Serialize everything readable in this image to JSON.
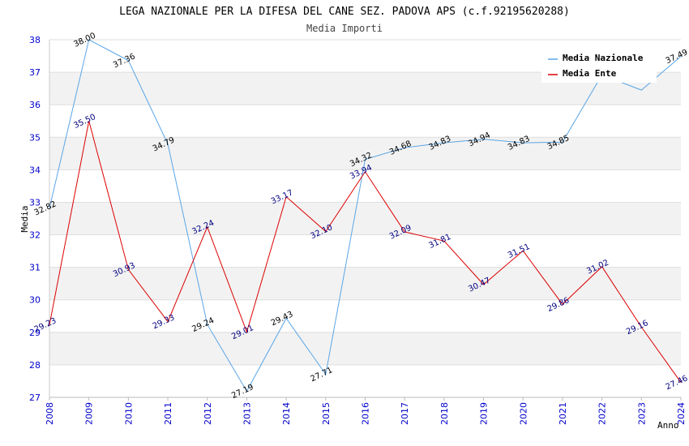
{
  "chart_data": {
    "type": "line",
    "title": "LEGA NAZIONALE PER LA DIFESA DEL CANE SEZ. PADOVA APS (c.f.92195620288)",
    "subtitle": "Media Importi",
    "xlabel": "Anno",
    "ylabel": "Media",
    "ylim": [
      27,
      38
    ],
    "yticks": [
      "27",
      "28",
      "29",
      "30",
      "31",
      "32",
      "33",
      "34",
      "35",
      "36",
      "37",
      "38"
    ],
    "categories": [
      "2008",
      "2009",
      "2010",
      "2011",
      "2012",
      "2013",
      "2014",
      "2015",
      "2016",
      "2017",
      "2018",
      "2019",
      "2020",
      "2021",
      "2022",
      "2023",
      "2024"
    ],
    "legend_position": "top-right",
    "grid": "horizontal bands",
    "series": [
      {
        "name": "Media Nazionale",
        "color": "#5aa5e6",
        "label_color": "#000000",
        "values": [
          32.82,
          38.0,
          37.36,
          34.79,
          29.24,
          27.19,
          29.43,
          27.71,
          34.32,
          34.68,
          34.83,
          34.94,
          34.83,
          34.85,
          36.92,
          36.45,
          37.49
        ],
        "labels": [
          "32.82",
          "38.00",
          "37.36",
          "34.79",
          "29.24",
          "27.19",
          "29.43",
          "27.71",
          "34.32",
          "34.68",
          "34.83",
          "34.94",
          "34.83",
          "34.85",
          "",
          "",
          "37.49"
        ]
      },
      {
        "name": "Media Ente",
        "color": "#dd0000",
        "label_color": "#000080",
        "values": [
          29.23,
          35.5,
          30.93,
          29.33,
          32.24,
          29.01,
          33.17,
          32.1,
          33.94,
          32.09,
          31.81,
          30.47,
          31.51,
          29.86,
          31.02,
          29.16,
          27.46
        ],
        "labels": [
          "29.23",
          "35.50",
          "30.93",
          "29.33",
          "32.24",
          "29.01",
          "33.17",
          "32.10",
          "33.94",
          "32.09",
          "31.81",
          "30.47",
          "31.51",
          "29.86",
          "31.02",
          "29.16",
          "27.46"
        ]
      }
    ]
  }
}
